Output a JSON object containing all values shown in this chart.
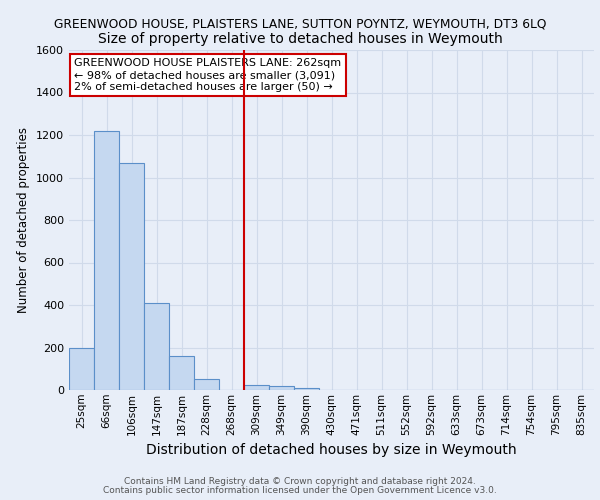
{
  "title": "GREENWOOD HOUSE, PLAISTERS LANE, SUTTON POYNTZ, WEYMOUTH, DT3 6LQ",
  "subtitle": "Size of property relative to detached houses in Weymouth",
  "xlabel": "Distribution of detached houses by size in Weymouth",
  "ylabel": "Number of detached properties",
  "bin_labels": [
    "25sqm",
    "66sqm",
    "106sqm",
    "147sqm",
    "187sqm",
    "228sqm",
    "268sqm",
    "309sqm",
    "349sqm",
    "390sqm",
    "430sqm",
    "471sqm",
    "511sqm",
    "552sqm",
    "592sqm",
    "633sqm",
    "673sqm",
    "714sqm",
    "754sqm",
    "795sqm",
    "835sqm"
  ],
  "bar_values": [
    200,
    1220,
    1070,
    410,
    160,
    50,
    0,
    25,
    20,
    10,
    0,
    0,
    0,
    0,
    0,
    0,
    0,
    0,
    0,
    0,
    0
  ],
  "bar_color": "#c5d8f0",
  "bar_edge_color": "#5b8fc9",
  "vline_color": "#cc0000",
  "vline_position": 6.5,
  "ylim": [
    0,
    1600
  ],
  "yticks": [
    0,
    200,
    400,
    600,
    800,
    1000,
    1200,
    1400,
    1600
  ],
  "annotation_box_text": "GREENWOOD HOUSE PLAISTERS LANE: 262sqm\n← 98% of detached houses are smaller (3,091)\n2% of semi-detached houses are larger (50) →",
  "annotation_box_color": "#ffffff",
  "annotation_box_edge_color": "#cc0000",
  "footer_line1": "Contains HM Land Registry data © Crown copyright and database right 2024.",
  "footer_line2": "Contains public sector information licensed under the Open Government Licence v3.0.",
  "background_color": "#e8eef8",
  "grid_color": "#d0daea",
  "title_fontsize": 8.8,
  "subtitle_fontsize": 10.0,
  "ylabel_fontsize": 8.5,
  "xlabel_fontsize": 10.0,
  "tick_fontsize": 7.5,
  "ytick_fontsize": 8.0,
  "annotation_fontsize": 8.0,
  "footer_fontsize": 6.5
}
